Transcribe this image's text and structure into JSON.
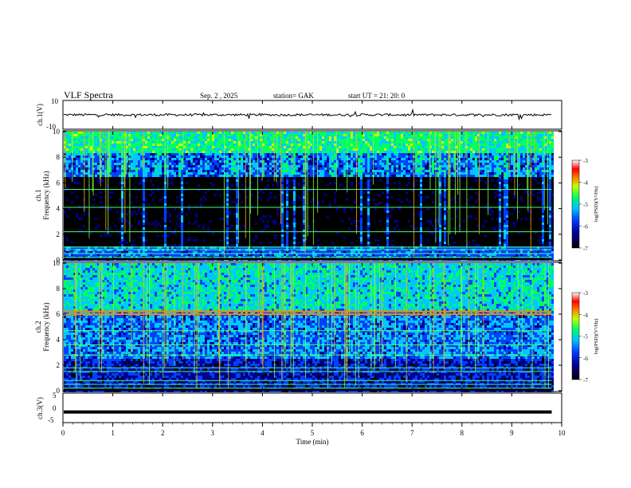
{
  "header": {
    "title": "VLF  Spectra",
    "date": "Sep. 2  , 2025",
    "station": "station= GAK",
    "start_ut": "start  UT  =    21: 20: 0"
  },
  "chart_data": [
    {
      "type": "line",
      "name": "ch1-waveform",
      "ylabel": "ch.1(V)",
      "ylim": [
        -10,
        10
      ],
      "y_ticks": [
        "10",
        "-10"
      ],
      "x_range": [
        0,
        10
      ],
      "baseline": 0
    },
    {
      "type": "heatmap",
      "name": "ch1-spectrogram",
      "ylabel": "ch.1\nFrequency  (kHz)",
      "ylabel_lines": [
        "ch.1",
        "Frequency  (kHz)"
      ],
      "ylim": [
        0,
        10
      ],
      "y_ticks": [
        "0",
        "2",
        "4",
        "6",
        "8",
        "10"
      ],
      "x_range": [
        0,
        9.8
      ],
      "colorbar": {
        "label": "log(PSD)(V²/Hz)",
        "range": [
          -7,
          -3
        ],
        "ticks": [
          "-3",
          "-4",
          "-5",
          "-6",
          "-7"
        ]
      },
      "horizontal_lines_khz": [
        0.2,
        0.5,
        0.8,
        1.0,
        2.2,
        4.1,
        5.5
      ]
    },
    {
      "type": "heatmap",
      "name": "ch2-spectrogram",
      "ylabel": "ch.2\nFrequency  (kHz)",
      "ylabel_lines": [
        "ch.2",
        "Frequency  (kHz)"
      ],
      "ylim": [
        0,
        10
      ],
      "y_ticks": [
        "0",
        "2",
        "4",
        "6",
        "8",
        "10"
      ],
      "x_range": [
        0,
        9.8
      ],
      "colorbar": {
        "label": "log(PSD)(V²/Hz)",
        "range": [
          -7,
          -3
        ],
        "ticks": [
          "-3",
          "-4",
          "-5",
          "-6",
          "-7"
        ]
      },
      "horizontal_lines_khz": [
        0.2,
        0.5,
        0.8,
        1.5,
        1.8,
        2.8,
        3.6,
        4.7,
        6.0,
        6.2
      ]
    },
    {
      "type": "line",
      "name": "ch3-waveform",
      "ylabel": "ch.3(V)",
      "ylim": [
        -5,
        5
      ],
      "y_ticks": [
        "5",
        "0",
        "-5"
      ],
      "x_range": [
        0,
        9.8
      ],
      "baseline": -1.4
    }
  ],
  "x_axis": {
    "label": "Time  (min)",
    "range": [
      0,
      10
    ],
    "ticks": [
      "0",
      "1",
      "2",
      "3",
      "4",
      "5",
      "6",
      "7",
      "8",
      "9",
      "10"
    ]
  }
}
